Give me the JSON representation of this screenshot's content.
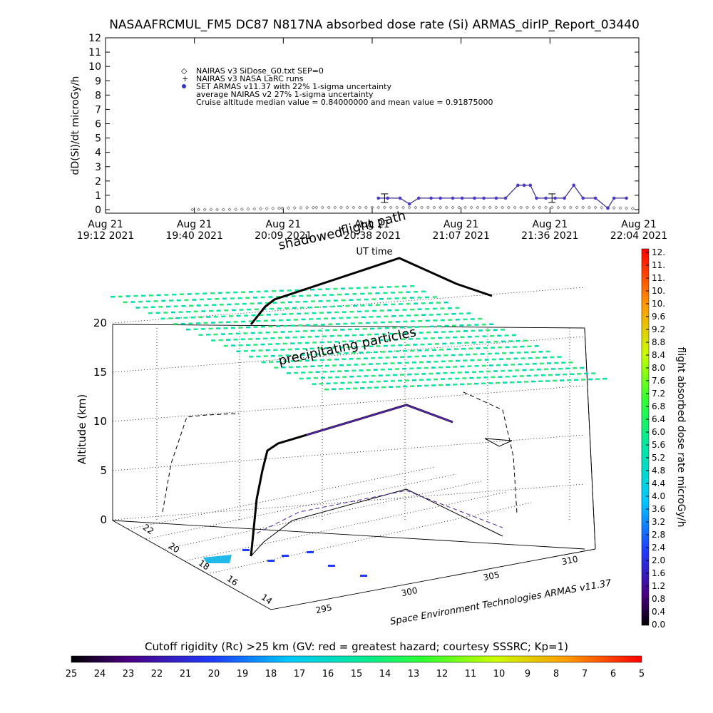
{
  "title": "NASAAFRCMUL_FM5 DC87 N817NA absorbed dose rate (Si) ARMAS_dirIP_Report_03440",
  "time_series": {
    "ylabel": "dD(Si)/dt microGy/h",
    "yticks": [
      "0",
      "1",
      "2",
      "3",
      "4",
      "5",
      "6",
      "7",
      "8",
      "9",
      "10",
      "11",
      "12"
    ],
    "xticks": [
      {
        "top": "Aug 21",
        "bottom": "19:12 2021"
      },
      {
        "top": "Aug 21",
        "bottom": "19:40 2021"
      },
      {
        "top": "Aug 21",
        "bottom": "20:09 2021"
      },
      {
        "top": "Aug 21",
        "bottom": "20:38 2021"
      },
      {
        "top": "Aug 21",
        "bottom": "21:07 2021"
      },
      {
        "top": "Aug 21",
        "bottom": "21:36 2021"
      },
      {
        "top": "Aug 21",
        "bottom": "22:04 2021"
      }
    ],
    "xlabel": "UT time",
    "legend": [
      "NAIRAS v3 SiDose_G0.txt SEP=0",
      "NAIRAS v3 NASA LaRC runs",
      "SET ARMAS v11.37 with 22% 1-sigma uncertainty",
      "average NAIRAS v2 27% 1-sigma uncertainty",
      "Cruise altitude median value = 0.84000000 and mean value = 0.91875000"
    ]
  },
  "overlay_labels": {
    "flight_path": "flight path",
    "shadowed": "shadowed",
    "precipitating": "precipitating particles"
  },
  "plot3d": {
    "zlabel": "Altitude (km)",
    "zticks": [
      "0",
      "5",
      "10",
      "15",
      "20"
    ],
    "lat_ticks": [
      "14",
      "16",
      "18",
      "20",
      "22"
    ],
    "lon_ticks": [
      "295",
      "300",
      "305",
      "310"
    ],
    "credit": "Space Environment Technologies ARMAS v11.37"
  },
  "right_colorbar": {
    "label": "flight absorbed dose rate microGy/h",
    "ticks": [
      "12.",
      "11.",
      "11.",
      "10.",
      "10.",
      "9.6",
      "9.2",
      "8.8",
      "8.4",
      "8.0",
      "7.6",
      "7.2",
      "6.8",
      "6.4",
      "6.0",
      "5.6",
      "5.2",
      "4.8",
      "4.4",
      "4.0",
      "3.6",
      "3.2",
      "2.8",
      "2.4",
      "2.0",
      "1.6",
      "1.2",
      "0.8",
      "0.4",
      "0.0"
    ]
  },
  "bottom_colorbar": {
    "title": "Cutoff rigidity (Rc) >25 km (GV: red = greatest hazard; courtesy SSSRC; Kp=1)",
    "ticks": [
      "25",
      "24",
      "23",
      "22",
      "21",
      "20",
      "19",
      "18",
      "17",
      "16",
      "15",
      "14",
      "13",
      "12",
      "11",
      "10",
      "9",
      "8",
      "7",
      "6",
      "5"
    ]
  },
  "chart_data": {
    "type": "scatter",
    "title": "NASAAFRCMUL_FM5 DC87 N817NA absorbed dose rate (Si) ARMAS_dirIP_Report_03440",
    "xlabel": "UT time",
    "ylabel": "dD(Si)/dt microGy/h",
    "ylim": [
      0,
      12
    ],
    "x_range": [
      "19:12",
      "22:04"
    ],
    "series": [
      {
        "name": "SET ARMAS v11.37 with 22% 1-sigma uncertainty",
        "x": [
          "20:40",
          "20:43",
          "20:47",
          "20:50",
          "20:53",
          "20:57",
          "21:00",
          "21:04",
          "21:07",
          "21:11",
          "21:14",
          "21:18",
          "21:21",
          "21:25",
          "21:27",
          "21:29",
          "21:31",
          "21:34",
          "21:37",
          "21:40",
          "21:43",
          "21:46",
          "21:50",
          "21:54",
          "21:56",
          "22:00"
        ],
        "y": [
          0.8,
          0.8,
          0.8,
          0.4,
          0.8,
          0.8,
          0.8,
          0.8,
          0.8,
          0.8,
          0.8,
          0.8,
          0.8,
          1.7,
          1.7,
          1.7,
          0.8,
          0.8,
          0.8,
          0.8,
          1.7,
          0.8,
          0.8,
          0.1,
          0.8,
          0.8
        ]
      },
      {
        "name": "NAIRAS v3 SiDose_G0.txt SEP=0",
        "x": [
          "19:40",
          "19:50",
          "20:00",
          "20:09",
          "20:20",
          "20:30",
          "20:40",
          "20:50",
          "21:00",
          "21:10",
          "21:20",
          "21:30",
          "21:40",
          "21:50",
          "22:00",
          "22:04"
        ],
        "y": [
          0.0,
          0.0,
          0.05,
          0.1,
          0.15,
          0.15,
          0.15,
          0.15,
          0.15,
          0.15,
          0.15,
          0.15,
          0.15,
          0.15,
          0.1,
          0.05
        ]
      }
    ]
  }
}
